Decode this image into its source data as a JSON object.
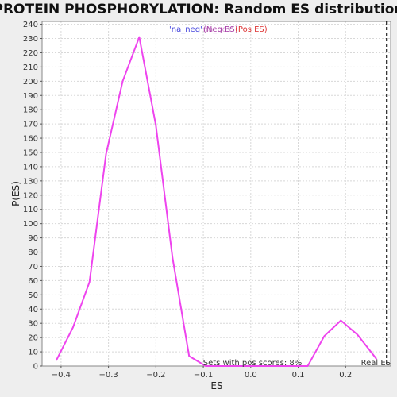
{
  "chart_data": {
    "type": "line",
    "title": "PROTEIN PHOSPHORYLATION: Random ES distribution",
    "xlabel": "ES",
    "ylabel": "P(ES)",
    "xlim": [
      -0.44,
      0.295
    ],
    "ylim": [
      0,
      242
    ],
    "x_ticks": [
      -0.4,
      -0.3,
      -0.2,
      -0.1,
      0.0,
      0.1,
      0.2
    ],
    "x_tick_labels": [
      "−0.4",
      "−0.3",
      "−0.2",
      "−0.1",
      "0.0",
      "0.1",
      "0.2"
    ],
    "y_ticks": [
      0,
      10,
      20,
      30,
      40,
      50,
      60,
      70,
      80,
      90,
      100,
      110,
      120,
      130,
      140,
      150,
      160,
      170,
      180,
      190,
      200,
      210,
      220,
      230,
      240
    ],
    "grid": true,
    "legend": {
      "placement": "top-center",
      "entries": [
        {
          "label": "'na_neg'",
          "color": "#4444dd"
        },
        {
          "label": "(Neg ES)",
          "color": "#aa44aa"
        },
        {
          "label": "'na_pos'",
          "color": "#aa44aa"
        },
        {
          "label": "(Pos ES)",
          "color": "#dd3333"
        }
      ]
    },
    "series": [
      {
        "color": "#ee44ee",
        "points": [
          [
            -0.41,
            4
          ],
          [
            -0.375,
            27
          ],
          [
            -0.34,
            59
          ],
          [
            -0.305,
            149
          ],
          [
            -0.27,
            200
          ],
          [
            -0.235,
            231
          ],
          [
            -0.2,
            169
          ],
          [
            -0.165,
            76
          ],
          [
            -0.13,
            7
          ],
          [
            -0.095,
            0
          ],
          [
            -0.06,
            0
          ],
          [
            -0.025,
            0
          ],
          [
            0.01,
            0
          ],
          [
            0.045,
            0
          ],
          [
            0.08,
            0
          ],
          [
            0.12,
            0
          ],
          [
            0.155,
            21
          ],
          [
            0.19,
            32
          ],
          [
            0.225,
            22
          ],
          [
            0.265,
            5
          ]
        ]
      }
    ],
    "annotations": [
      {
        "text": "Sets with pos scores: 8%"
      },
      {
        "text": "Real ES",
        "color": "#333333"
      }
    ],
    "real_es_line": {
      "x": 0.287,
      "style": "dashed",
      "color": "#000000"
    }
  }
}
